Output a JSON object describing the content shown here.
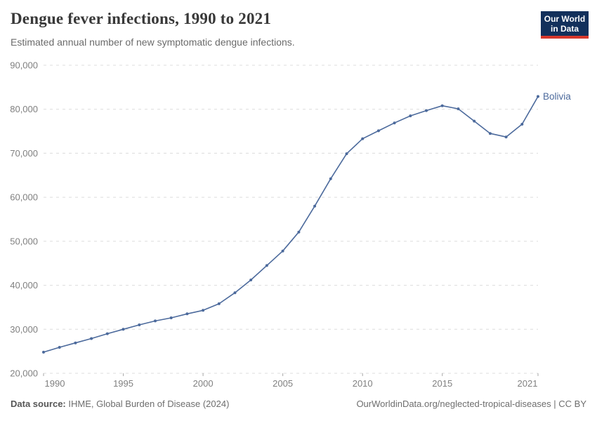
{
  "header": {
    "title": "Dengue fever infections, 1990 to 2021",
    "subtitle": "Estimated annual number of new symptomatic dengue infections."
  },
  "logo": {
    "line1": "Our World",
    "line2": "in Data"
  },
  "footer": {
    "data_source_label": "Data source:",
    "data_source_value": " IHME, Global Burden of Disease (2024)",
    "attribution": "OurWorldinData.org/neglected-tropical-diseases | CC BY"
  },
  "colors": {
    "line": "#4c6a9c",
    "end_label": "#4c6a9c",
    "grid": "#dcdcdc",
    "tick_label": "#808080",
    "tick_mark": "#a8a8a8",
    "title": "#383838",
    "subtitle": "#6b6b6b",
    "logo_bg": "#12305b",
    "logo_red": "#d7382c"
  },
  "chart_data": {
    "type": "line",
    "title": "Dengue fever infections, 1990 to 2021",
    "xlabel": "",
    "ylabel": "",
    "xlim": [
      1990,
      2021
    ],
    "ylim": [
      20000,
      90000
    ],
    "grid": true,
    "legend_position": "end-of-line",
    "x_ticks": [
      1990,
      1995,
      2000,
      2005,
      2010,
      2015,
      2021
    ],
    "y_ticks": [
      20000,
      30000,
      40000,
      50000,
      60000,
      70000,
      80000,
      90000
    ],
    "series": [
      {
        "name": "Bolivia",
        "x": [
          1990,
          1991,
          1992,
          1993,
          1994,
          1995,
          1996,
          1997,
          1998,
          1999,
          2000,
          2001,
          2002,
          2003,
          2004,
          2005,
          2006,
          2007,
          2008,
          2009,
          2010,
          2011,
          2012,
          2013,
          2014,
          2015,
          2016,
          2017,
          2018,
          2019,
          2020,
          2021
        ],
        "values": [
          24800,
          25900,
          26900,
          27900,
          29000,
          30000,
          31000,
          31900,
          32600,
          33500,
          34300,
          35800,
          38300,
          41200,
          44500,
          47800,
          52100,
          58000,
          64200,
          69900,
          73300,
          75100,
          76900,
          78500,
          79700,
          80800,
          80100,
          77300,
          74500,
          73700,
          76600,
          82900
        ]
      }
    ]
  }
}
